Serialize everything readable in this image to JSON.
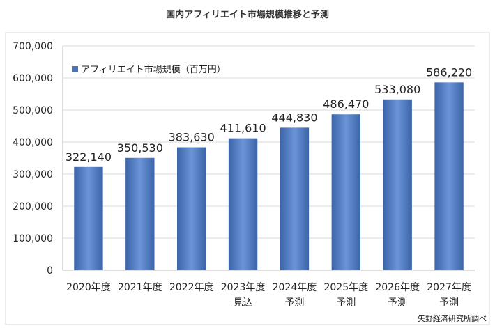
{
  "chart_data": {
    "type": "bar",
    "title": "国内アフィリエイト市場規模推移と予測",
    "categories": [
      [
        "2020年度",
        ""
      ],
      [
        "2021年度",
        ""
      ],
      [
        "2022年度",
        ""
      ],
      [
        "2023年度",
        "見込"
      ],
      [
        "2024年度",
        "予測"
      ],
      [
        "2025年度",
        "予測"
      ],
      [
        "2026年度",
        "予測"
      ],
      [
        "2027年度",
        "予測"
      ]
    ],
    "series": [
      {
        "name": "アフィリエイト市場規模（百万円）",
        "values": [
          322140,
          350530,
          383630,
          411610,
          444830,
          486470,
          533080,
          586220
        ],
        "labels": [
          "322,140",
          "350,530",
          "383,630",
          "411,610",
          "444,830",
          "486,470",
          "533,080",
          "586,220"
        ],
        "color": "#4a74b8"
      }
    ],
    "yticks": [
      "0",
      "100,000",
      "200,000",
      "300,000",
      "400,000",
      "500,000",
      "600,000",
      "700,000"
    ],
    "ylim": [
      0,
      700000
    ],
    "grid": true,
    "legend": "top-left",
    "source": "矢野経済研究所調べ"
  }
}
